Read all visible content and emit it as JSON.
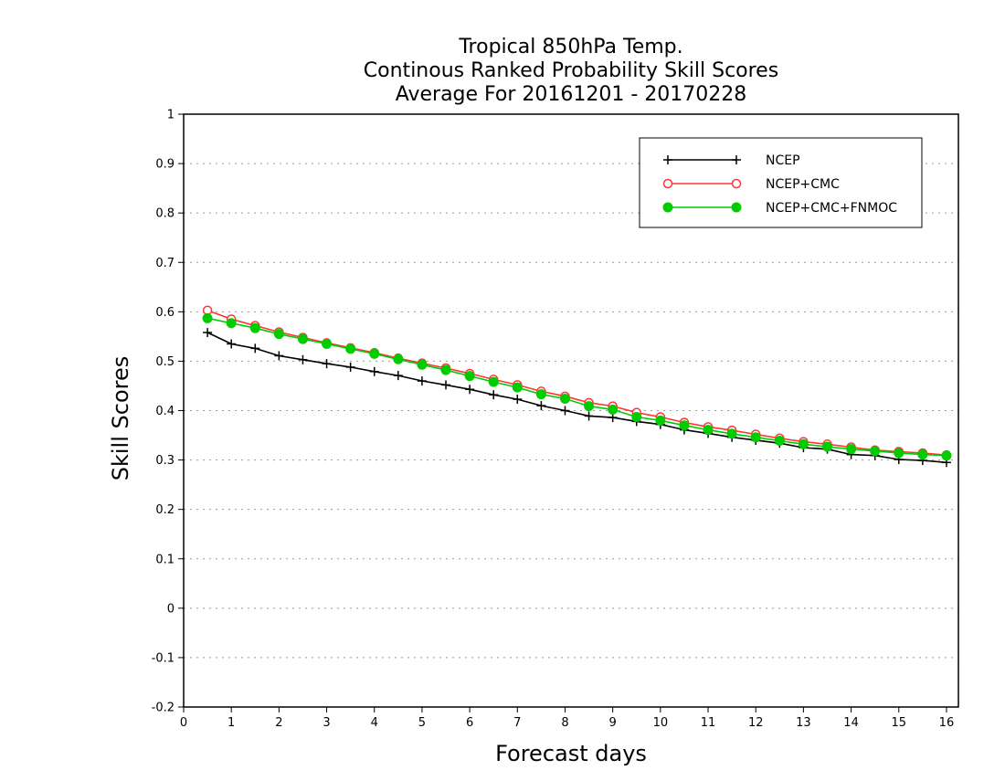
{
  "chart_data": {
    "type": "line",
    "title": [
      "Tropical 850hPa Temp.",
      "Continous Ranked Probability Skill Scores",
      "Average For 20161201 - 20170228"
    ],
    "xlabel": "Forecast days",
    "ylabel": "Skill Scores",
    "xlim": [
      0,
      16.25
    ],
    "ylim": [
      -0.2,
      1
    ],
    "x_ticks": [
      "0",
      "1",
      "2",
      "3",
      "4",
      "5",
      "6",
      "7",
      "8",
      "9",
      "10",
      "11",
      "12",
      "13",
      "14",
      "15",
      "16"
    ],
    "y_ticks": [
      "-0.2",
      "-0.1",
      "0",
      "0.1",
      "0.2",
      "0.3",
      "0.4",
      "0.5",
      "0.6",
      "0.7",
      "0.8",
      "0.9",
      "1"
    ],
    "grid": true,
    "legend_position": "top-right",
    "x": [
      0.5,
      1,
      1.5,
      2,
      2.5,
      3,
      3.5,
      4,
      4.5,
      5,
      5.5,
      6,
      6.5,
      7,
      7.5,
      8,
      8.5,
      9,
      9.5,
      10,
      10.5,
      11,
      11.5,
      12,
      12.5,
      13,
      13.5,
      14,
      14.5,
      15,
      15.5,
      16
    ],
    "series": [
      {
        "name": "NCEP",
        "color": "#000000",
        "marker": "plus",
        "values": [
          0.558,
          0.535,
          0.526,
          0.511,
          0.503,
          0.495,
          0.488,
          0.479,
          0.471,
          0.46,
          0.452,
          0.443,
          0.432,
          0.423,
          0.41,
          0.4,
          0.389,
          0.386,
          0.378,
          0.372,
          0.361,
          0.354,
          0.346,
          0.34,
          0.334,
          0.325,
          0.322,
          0.311,
          0.309,
          0.301,
          0.299,
          0.295
        ]
      },
      {
        "name": "NCEP+CMC",
        "color": "#ff3333",
        "marker": "open-circle",
        "values": [
          0.603,
          0.585,
          0.572,
          0.559,
          0.548,
          0.537,
          0.527,
          0.517,
          0.506,
          0.496,
          0.486,
          0.475,
          0.463,
          0.452,
          0.439,
          0.429,
          0.416,
          0.409,
          0.396,
          0.387,
          0.376,
          0.367,
          0.36,
          0.352,
          0.344,
          0.337,
          0.332,
          0.326,
          0.32,
          0.317,
          0.314,
          0.31
        ]
      },
      {
        "name": "NCEP+CMC+FNMOC",
        "color": "#00cc00",
        "marker": "filled-circle",
        "values": [
          0.587,
          0.577,
          0.567,
          0.555,
          0.545,
          0.535,
          0.525,
          0.515,
          0.504,
          0.493,
          0.482,
          0.47,
          0.458,
          0.447,
          0.433,
          0.424,
          0.409,
          0.402,
          0.387,
          0.38,
          0.37,
          0.361,
          0.353,
          0.346,
          0.339,
          0.332,
          0.327,
          0.322,
          0.318,
          0.314,
          0.311,
          0.309
        ]
      }
    ]
  }
}
